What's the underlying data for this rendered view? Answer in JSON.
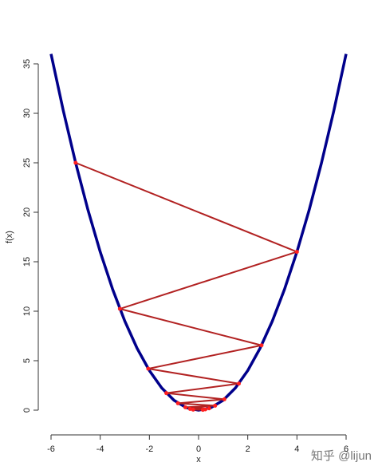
{
  "chart_data": {
    "type": "line",
    "xlabel": "x",
    "ylabel": "f(x)",
    "xlim": [
      -6,
      6
    ],
    "ylim": [
      0,
      35
    ],
    "xticks": [
      -6,
      -4,
      -2,
      0,
      2,
      4,
      6
    ],
    "yticks": [
      0,
      5,
      10,
      15,
      20,
      25,
      30,
      35
    ],
    "series": [
      {
        "color": "#00008b",
        "markers": false,
        "x": [
          -6,
          -5.5,
          -5,
          -4.5,
          -4,
          -3.5,
          -3,
          -2.5,
          -2,
          -1.5,
          -1,
          -0.5,
          0,
          0.5,
          1,
          1.5,
          2,
          2.5,
          3,
          3.5,
          4,
          4.5,
          5,
          5.5,
          6
        ],
        "values": [
          36,
          30.25,
          25,
          20.25,
          16,
          12.25,
          9,
          6.25,
          4,
          2.25,
          1,
          0.25,
          0,
          0.25,
          1,
          2.25,
          4,
          6.25,
          9,
          12.25,
          16,
          20.25,
          25,
          30.25,
          36
        ]
      },
      {
        "color": "#b22222",
        "markers": true,
        "x": [
          -5,
          4,
          -3.2,
          2.56,
          -2.048,
          1.638,
          -1.311,
          1.049,
          -0.839,
          0.671,
          -0.537,
          0.429,
          -0.344,
          0.275,
          -0.22,
          0.176
        ],
        "values": [
          25,
          16,
          10.24,
          6.55,
          4.19,
          2.68,
          1.72,
          1.1,
          0.7,
          0.45,
          0.29,
          0.18,
          0.12,
          0.08,
          0.05,
          0.03
        ]
      }
    ],
    "watermark": "知乎 @lijun"
  }
}
